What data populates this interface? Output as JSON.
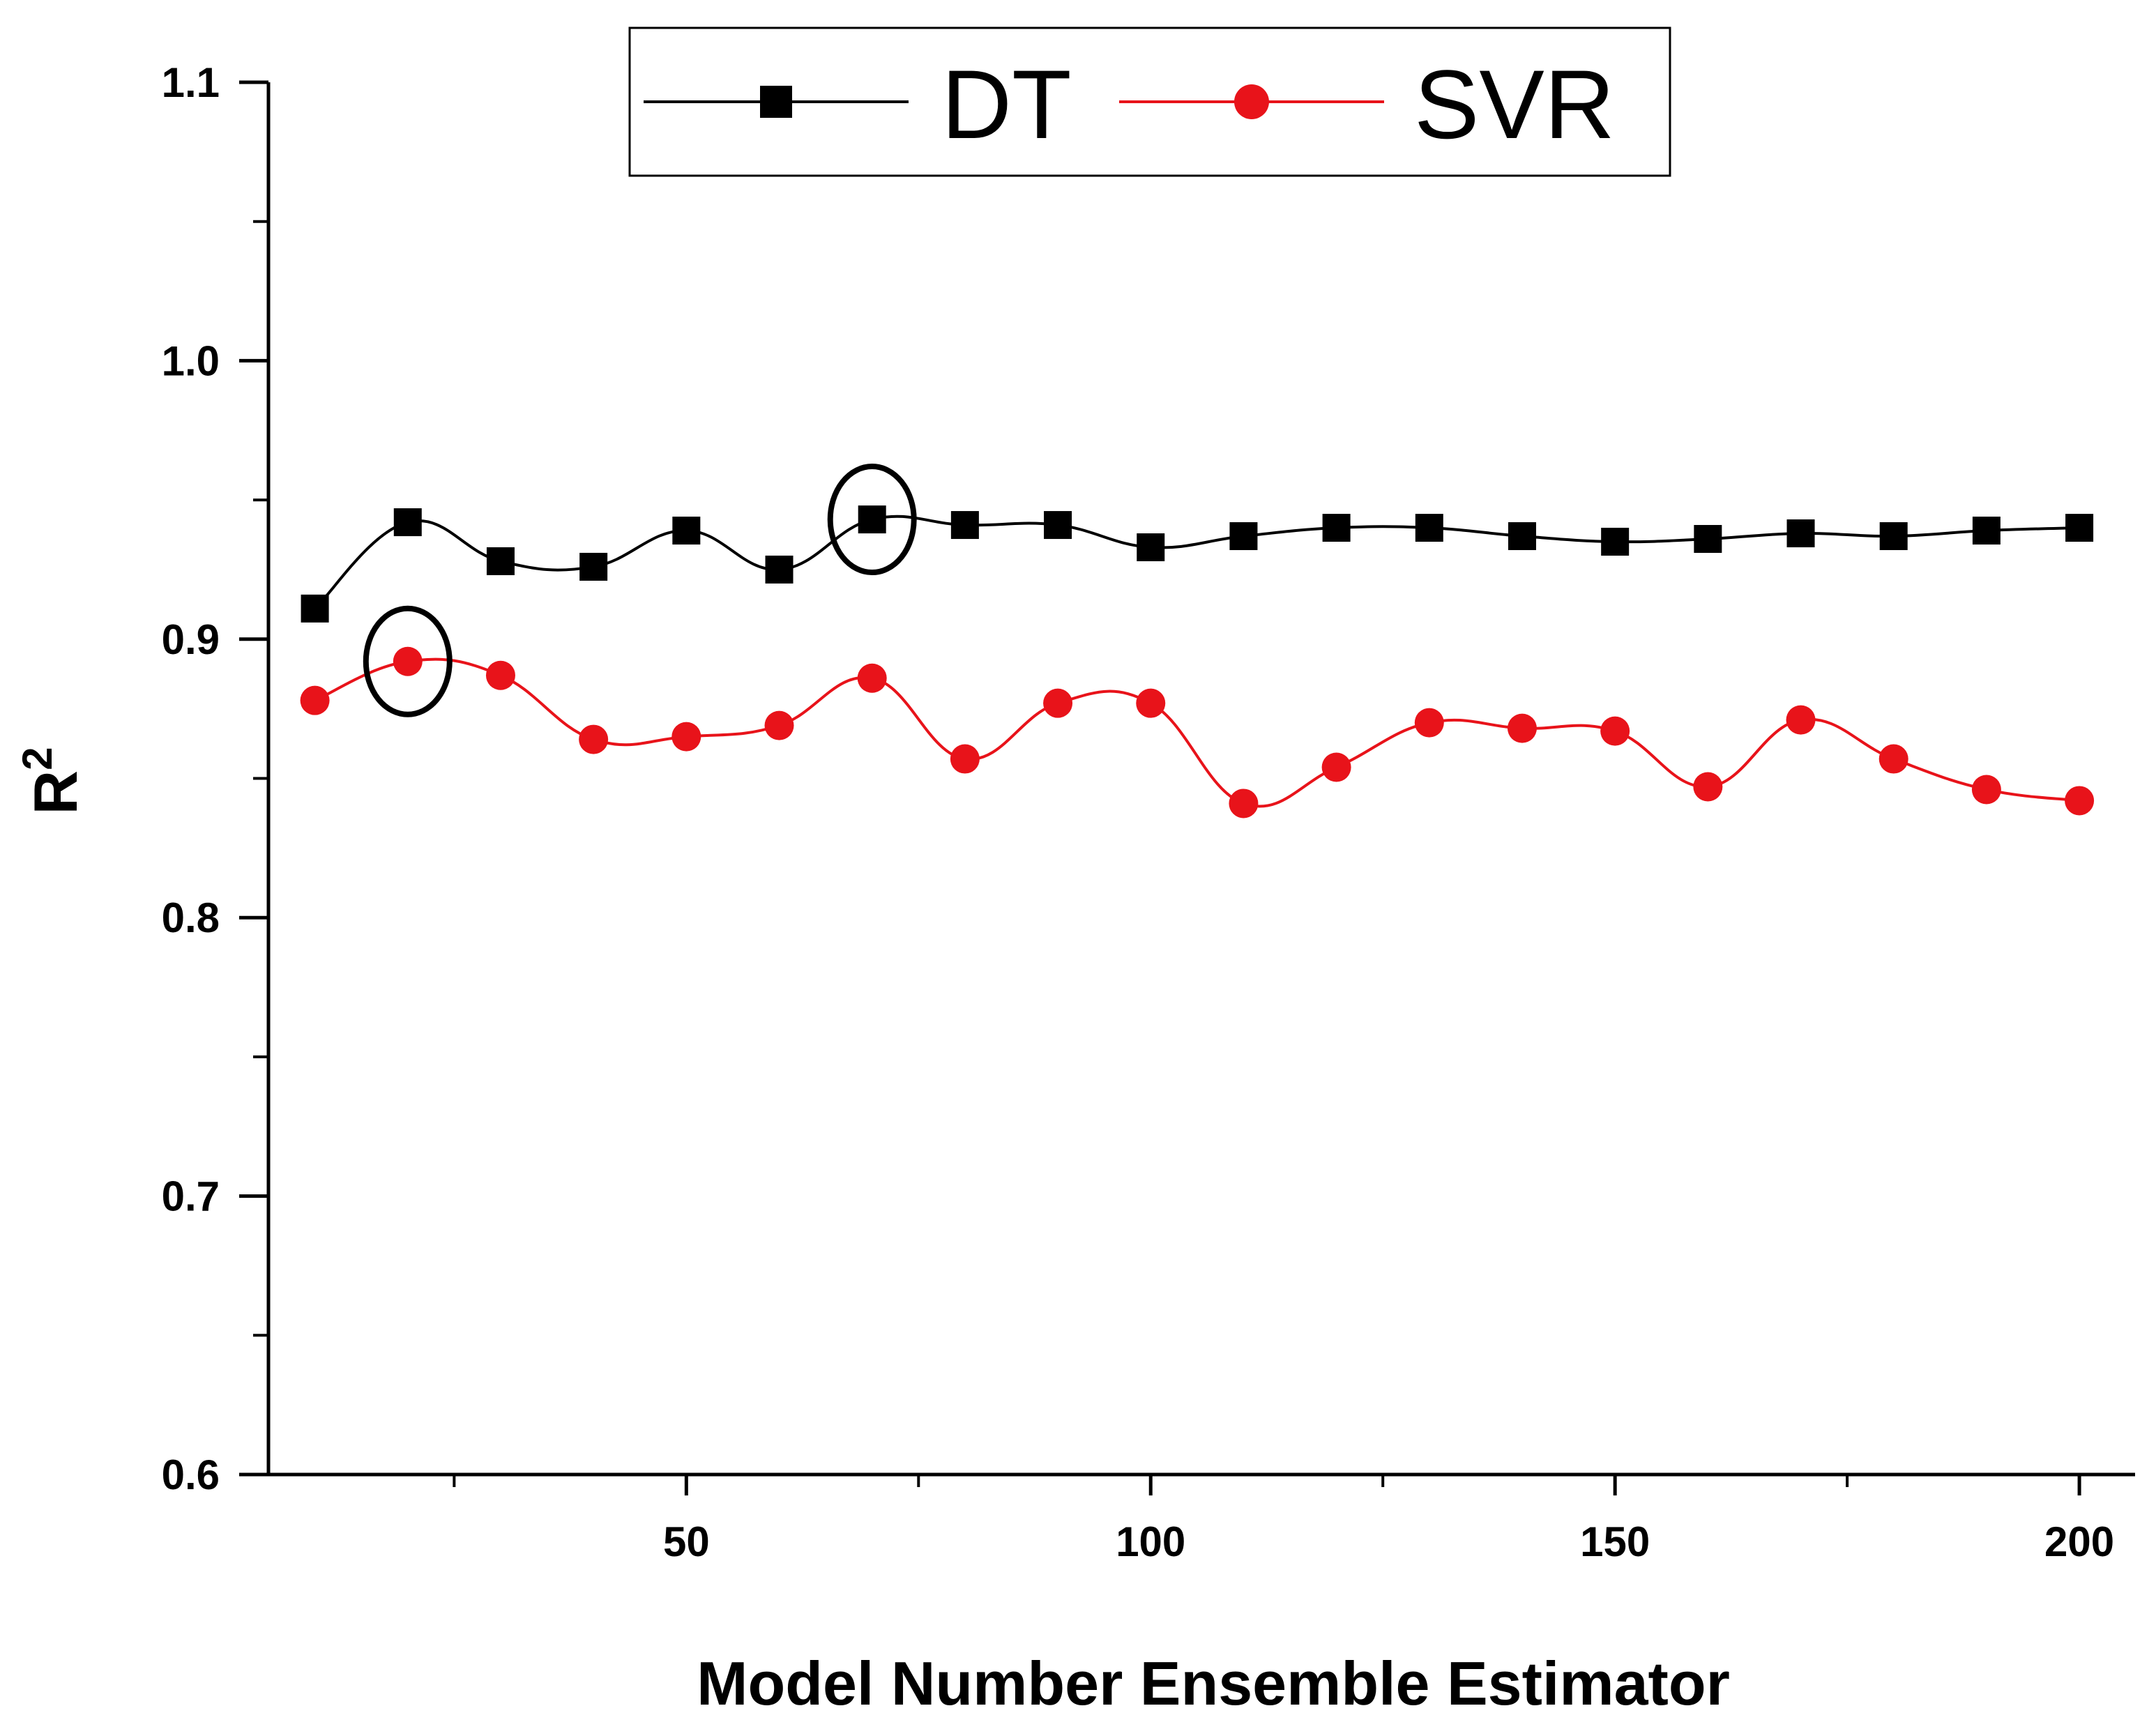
{
  "chart_data": {
    "type": "line",
    "title": "",
    "xlabel": "Model Number Ensemble Estimator",
    "ylabel": "R",
    "ylabel_superscript": "2",
    "xlim": [
      5,
      206
    ],
    "ylim": [
      0.6,
      1.1
    ],
    "x_ticks": [
      50,
      100,
      150,
      200
    ],
    "x_minor_ticks": [
      25,
      75,
      125,
      175
    ],
    "y_ticks": [
      0.6,
      0.7,
      0.8,
      0.9,
      1.0,
      1.1
    ],
    "y_tick_labels": [
      "0.6",
      "0.7",
      "0.8",
      "0.9",
      "1.0",
      "1.1"
    ],
    "y_minor_ticks": [
      0.65,
      0.75,
      0.85,
      0.95,
      1.05
    ],
    "grid": false,
    "legend_position": "top-center",
    "x": [
      10,
      20,
      30,
      40,
      50,
      60,
      70,
      80,
      90,
      100,
      110,
      120,
      130,
      140,
      150,
      160,
      170,
      180,
      190,
      200
    ],
    "series": [
      {
        "name": "DT",
        "color": "#000000",
        "marker": "square",
        "values": [
          0.911,
          0.942,
          0.928,
          0.926,
          0.939,
          0.925,
          0.943,
          0.941,
          0.941,
          0.933,
          0.937,
          0.94,
          0.94,
          0.937,
          0.935,
          0.936,
          0.938,
          0.937,
          0.939,
          0.94
        ]
      },
      {
        "name": "SVR",
        "color": "#e8131a",
        "marker": "circle",
        "values": [
          0.878,
          0.892,
          0.887,
          0.864,
          0.865,
          0.869,
          0.886,
          0.857,
          0.877,
          0.877,
          0.841,
          0.854,
          0.87,
          0.868,
          0.867,
          0.847,
          0.871,
          0.857,
          0.846,
          0.842
        ]
      }
    ],
    "annotations": [
      {
        "type": "ellipse",
        "series": "DT",
        "x": 70,
        "y": 0.943
      },
      {
        "type": "ellipse",
        "series": "SVR",
        "x": 20,
        "y": 0.892
      }
    ]
  }
}
